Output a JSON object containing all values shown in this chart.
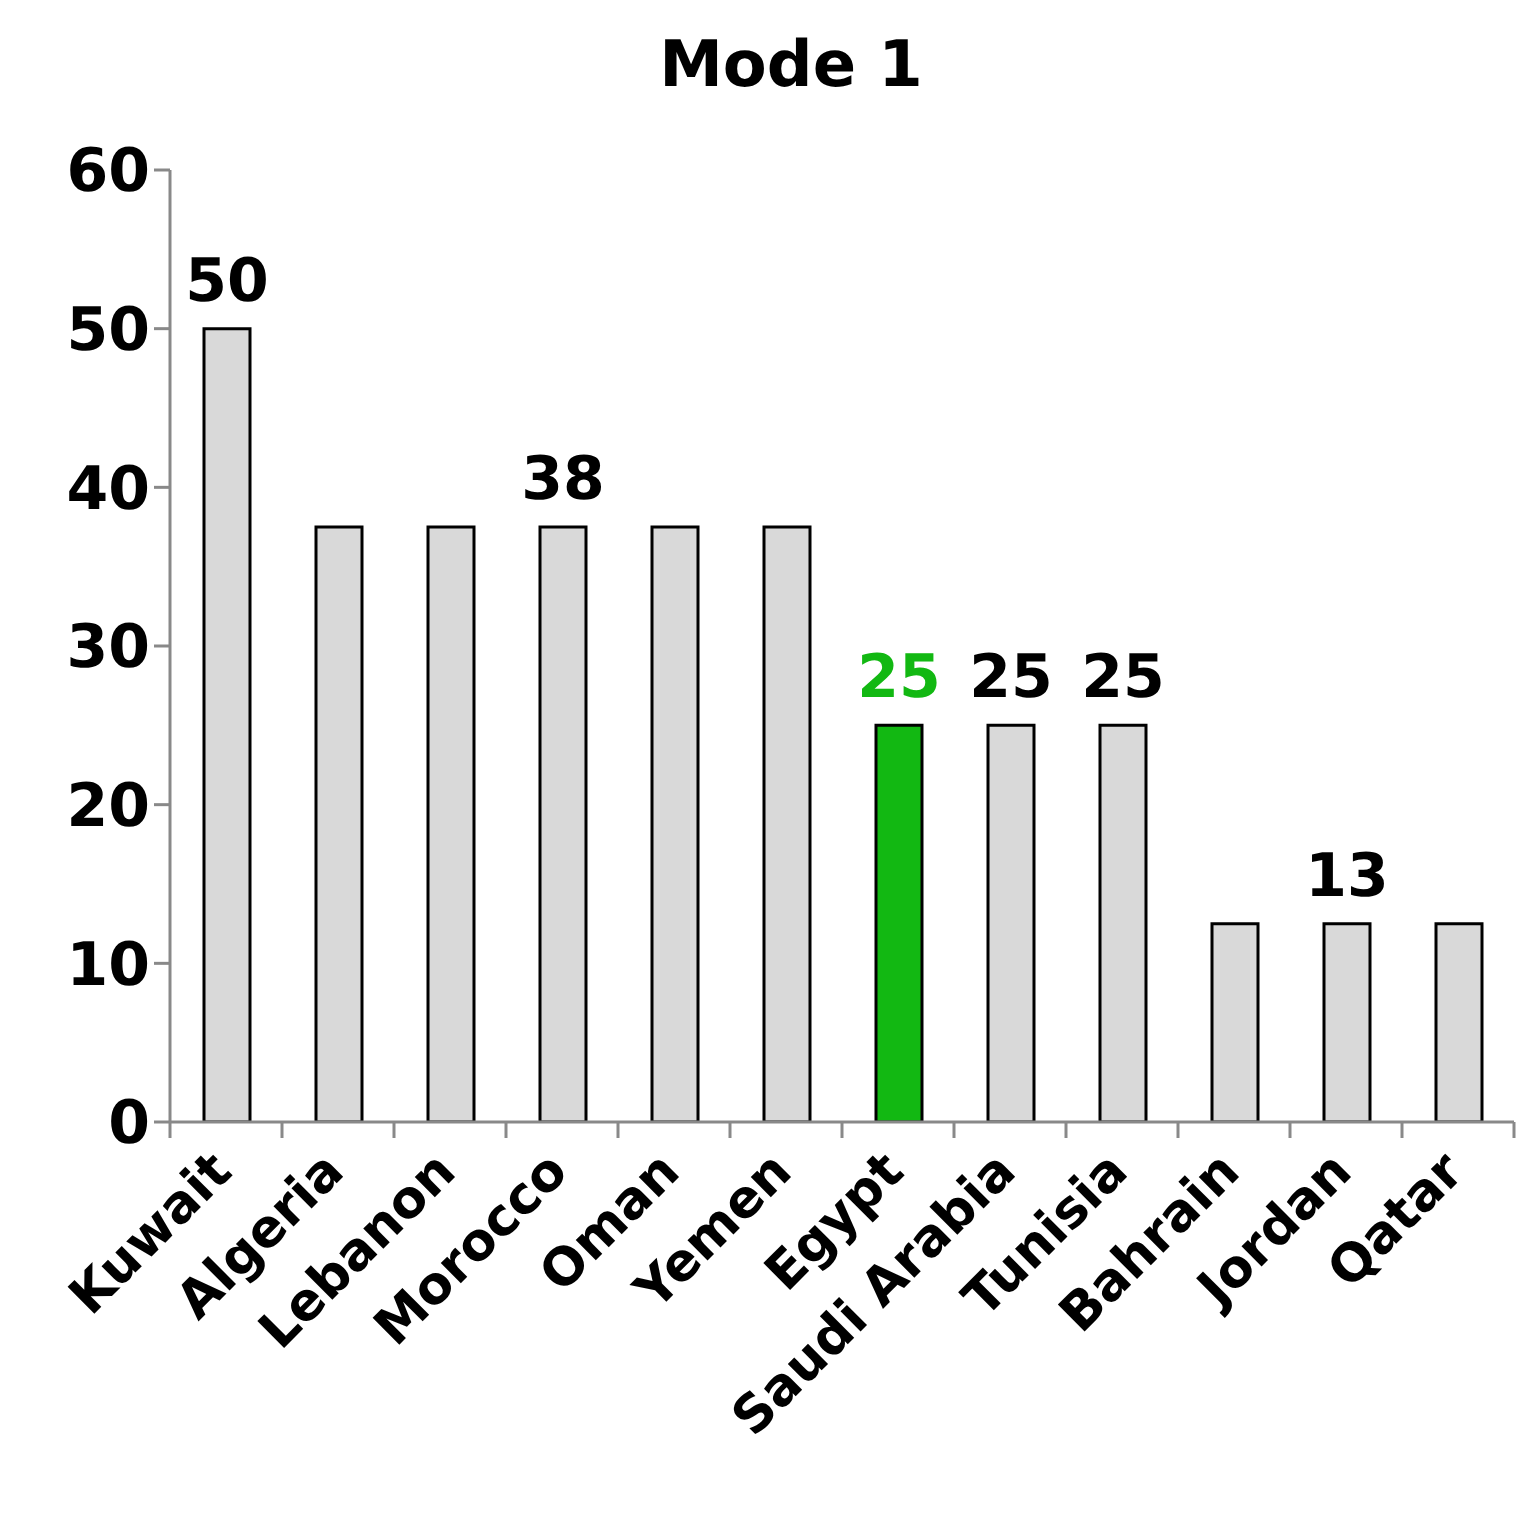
{
  "chart_data": {
    "type": "bar",
    "title": "Mode 1",
    "categories": [
      "Kuwait",
      "Algeria",
      "Lebanon",
      "Morocco",
      "Oman",
      "Yemen",
      "Egypt",
      "Saudi Arabia",
      "Tunisia",
      "Bahrain",
      "Jordan",
      "Qatar"
    ],
    "values": [
      50,
      37.5,
      37.5,
      37.5,
      37.5,
      37.5,
      25,
      25,
      25,
      12.5,
      12.5,
      12.5
    ],
    "colors": [
      "#d9d9d9",
      "#d9d9d9",
      "#d9d9d9",
      "#d9d9d9",
      "#d9d9d9",
      "#d9d9d9",
      "#12b812",
      "#d9d9d9",
      "#d9d9d9",
      "#d9d9d9",
      "#d9d9d9",
      "#d9d9d9"
    ],
    "value_labels": [
      "50",
      null,
      null,
      "38",
      null,
      null,
      "25",
      "25",
      "25",
      null,
      "13",
      null
    ],
    "ylim": [
      0,
      60
    ],
    "yticks": [
      0,
      10,
      20,
      30,
      40,
      50,
      60
    ]
  }
}
